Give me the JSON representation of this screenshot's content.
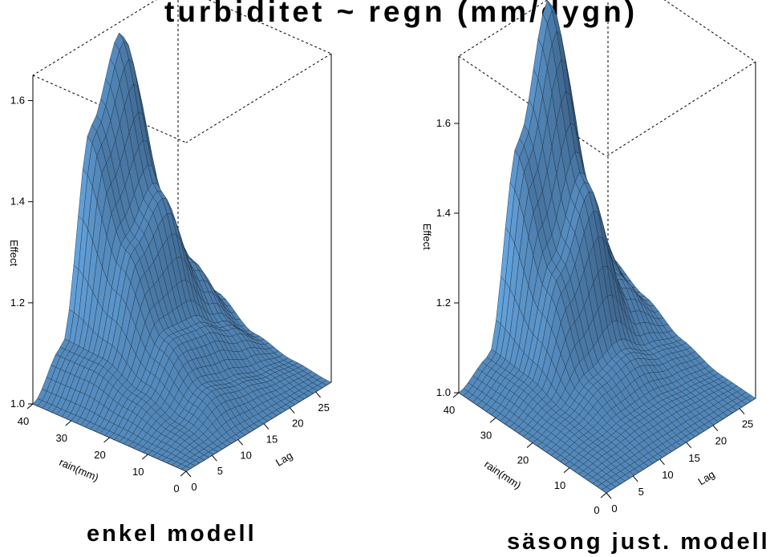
{
  "title": "turbiditet ~ regn (mm/dygn)",
  "chart_data": [
    {
      "type": "surface",
      "caption": "enkel modell",
      "zlabel": "Effect",
      "xlabel": "rain(mm)",
      "ylabel": "Lag",
      "zticks": [
        "1.0",
        "1.2",
        "1.4",
        "1.6"
      ],
      "xticks": [
        "0",
        "10",
        "20",
        "30",
        "40"
      ],
      "yticks": [
        "0",
        "5",
        "10",
        "15",
        "20",
        "25"
      ],
      "zlim": [
        1.0,
        1.65
      ],
      "xlim": [
        0,
        40
      ],
      "ylim": [
        0,
        28
      ],
      "surface_color": "#6aaee0",
      "grid": [
        [
          1.0,
          1.0,
          1.0,
          1.0,
          1.0
        ],
        [
          1.0,
          1.02,
          1.05,
          1.08,
          1.08
        ],
        [
          1.0,
          1.06,
          1.13,
          1.28,
          1.48
        ],
        [
          1.0,
          1.04,
          1.12,
          1.35,
          1.63
        ],
        [
          1.0,
          1.02,
          1.08,
          1.18,
          1.3
        ],
        [
          1.0,
          1.01,
          1.03,
          1.08,
          1.12
        ]
      ]
    },
    {
      "type": "surface",
      "caption": "säsong just. modell",
      "zlabel": "Effect",
      "xlabel": "rain(mm)",
      "ylabel": "Lag",
      "zticks": [
        "1.0",
        "1.2",
        "1.4",
        "1.6"
      ],
      "xticks": [
        "0",
        "10",
        "20",
        "30",
        "40"
      ],
      "yticks": [
        "0",
        "5",
        "10",
        "15",
        "20",
        "25"
      ],
      "zlim": [
        1.0,
        1.75
      ],
      "xlim": [
        0,
        40
      ],
      "ylim": [
        0,
        28
      ],
      "surface_color": "#6aaee0",
      "grid": [
        [
          1.0,
          1.0,
          1.0,
          1.0,
          1.0
        ],
        [
          1.0,
          1.01,
          1.02,
          1.04,
          1.04
        ],
        [
          1.0,
          1.02,
          1.06,
          1.25,
          1.48
        ],
        [
          1.0,
          1.02,
          1.08,
          1.4,
          1.75
        ],
        [
          1.0,
          1.01,
          1.04,
          1.15,
          1.3
        ],
        [
          1.0,
          1.0,
          1.02,
          1.06,
          1.1
        ]
      ]
    }
  ]
}
